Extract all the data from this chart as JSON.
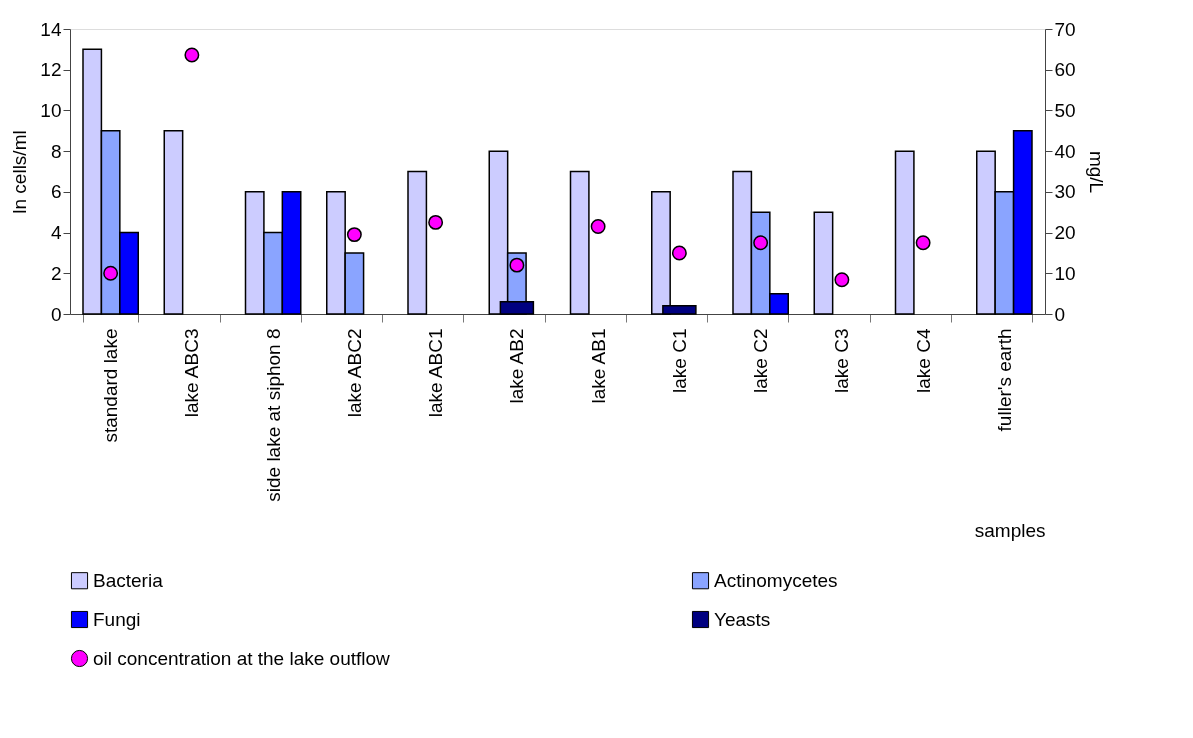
{
  "chart_data": {
    "type": "bar",
    "xlabel": "samples",
    "ylabel": "ln cells/ml",
    "y2label": "mg/L",
    "categories": [
      "standard lake",
      "lake ABC3",
      "side lake at siphon 8",
      "lake ABC2",
      "lake ABC1",
      "lake AB2",
      "lake AB1",
      "lake C1",
      "lake C2",
      "lake C3",
      "lake C4",
      "fuller's earth"
    ],
    "series": [
      {
        "name": "Bacteria",
        "color": "#ccccff",
        "values": [
          13,
          9,
          6,
          6,
          7,
          8,
          7,
          6,
          7,
          5,
          8,
          8
        ]
      },
      {
        "name": "Actinomycetes",
        "color": "#8aa4ff",
        "values": [
          9,
          null,
          4,
          3,
          null,
          3,
          null,
          null,
          5,
          null,
          null,
          6
        ]
      },
      {
        "name": "Fungi",
        "color": "#0000ff",
        "values": [
          4,
          null,
          6,
          null,
          null,
          null,
          null,
          null,
          1,
          null,
          null,
          9
        ]
      },
      {
        "name": "Yeasts",
        "color": "#000080",
        "values": [
          null,
          null,
          null,
          null,
          null,
          0.6,
          null,
          0.4,
          null,
          null,
          null,
          null
        ]
      },
      {
        "name": "oil concentration at the lake outflow",
        "type": "scatter",
        "axis": "y2",
        "color": "#ff00ff",
        "marker": "circle",
        "values": [
          10,
          63.6,
          null,
          19.5,
          22.5,
          12,
          21.5,
          15,
          17.5,
          8.4,
          17.5,
          null
        ]
      }
    ],
    "ylim": [
      0,
      14
    ],
    "yticks": [
      0,
      2,
      4,
      6,
      8,
      10,
      12,
      14
    ],
    "y2lim": [
      0,
      70
    ],
    "y2ticks": [
      0,
      10,
      20,
      30,
      40,
      50,
      60,
      70
    ],
    "legend": "bottom"
  }
}
